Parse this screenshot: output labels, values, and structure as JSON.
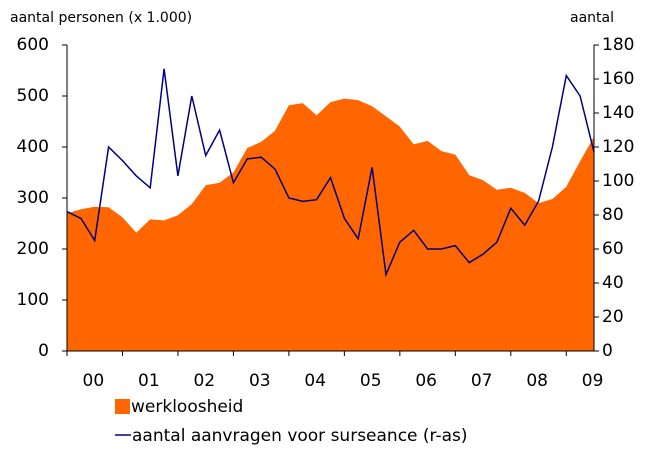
{
  "chart_data": {
    "type": "area-line",
    "ylabel": "aantal personen (x 1.000)",
    "y2label": "aantal",
    "xlabels": [
      "00",
      "01",
      "02",
      "03",
      "04",
      "05",
      "06",
      "07",
      "08",
      "09"
    ],
    "ylim": [
      0,
      600
    ],
    "yticks": [
      0,
      100,
      200,
      300,
      400,
      500,
      600
    ],
    "y2lim": [
      0,
      180
    ],
    "y2ticks": [
      0,
      20,
      40,
      60,
      80,
      100,
      120,
      140,
      160,
      180
    ],
    "series": [
      {
        "name": "werkloosheid",
        "color": "#ff6600",
        "values": [
          270,
          278,
          283,
          282,
          262,
          232,
          258,
          256,
          266,
          288,
          325,
          330,
          350,
          398,
          410,
          432,
          482,
          486,
          462,
          488,
          495,
          492,
          480,
          460,
          440,
          405,
          412,
          392,
          385,
          345,
          335,
          316,
          320,
          310,
          290,
          298,
          322,
          372,
          420
        ]
      },
      {
        "name": "aantal aanvragen voor surseance (r-as)",
        "color": "#000080",
        "axis": "y2",
        "values": [
          82,
          78,
          65,
          120,
          112,
          103,
          96,
          166,
          103,
          150,
          115,
          130,
          99,
          113,
          114,
          107,
          90,
          88,
          89,
          102,
          78,
          66,
          108,
          45,
          64,
          71,
          60,
          60,
          62,
          52,
          57,
          64,
          84,
          74,
          88,
          120,
          162,
          150,
          117
        ]
      }
    ]
  }
}
